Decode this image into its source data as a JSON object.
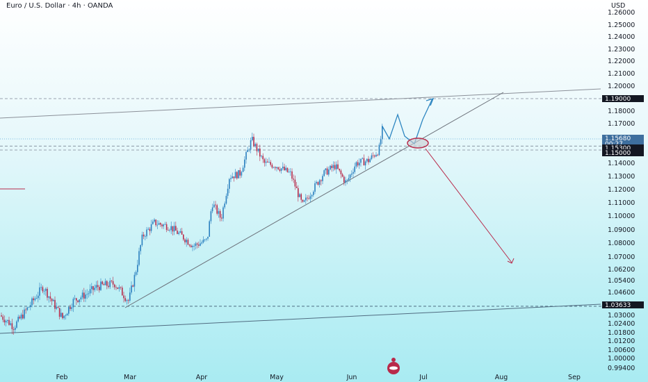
{
  "chart_data": {
    "type": "candlestick",
    "title": "Euro / U.S. Dollar · 4h · OANDA",
    "currency": "USD",
    "x_ticks": [
      "Feb",
      "Mar",
      "Apr",
      "May",
      "Jun",
      "Jul",
      "Aug",
      "Sep"
    ],
    "y_ticks": [
      "1.26000",
      "1.25000",
      "1.24000",
      "1.23000",
      "1.22000",
      "1.21000",
      "1.20000",
      "1.18000",
      "1.17000",
      "1.14000",
      "1.13000",
      "1.12000",
      "1.11000",
      "1.10000",
      "1.09000",
      "1.08000",
      "1.07000",
      "1.06200",
      "1.05400",
      "1.04600",
      "1.03000",
      "1.02400",
      "1.01800",
      "1.01200",
      "1.00600",
      "1.00000",
      "0.99400"
    ],
    "price_tags": [
      {
        "label": "1.19000",
        "value": 1.19,
        "color": "#131722"
      },
      {
        "label": "1.15680",
        "value": 1.1568,
        "color": "#3e6f9e"
      },
      {
        "label": "00:27",
        "value": 1.1555,
        "color": "#3e6f9e"
      },
      {
        "label": "1.15300",
        "value": 1.153,
        "color": "#131722"
      },
      {
        "label": "1.15000",
        "value": 1.15,
        "color": "#131722"
      },
      {
        "label": "1.03633",
        "value": 1.03633,
        "color": "#131722"
      }
    ],
    "candle_colors": {
      "up": "#2a7fbf",
      "down": "#b82a4a"
    },
    "price_path": [
      {
        "x": "early Jan",
        "close": 1.03
      },
      {
        "x": "mid Jan",
        "close": 1.04
      },
      {
        "x": "late Jan",
        "close": 1.045
      },
      {
        "x": "early Feb",
        "close": 1.025
      },
      {
        "x": "mid Feb",
        "close": 1.045
      },
      {
        "x": "late Feb",
        "close": 1.042
      },
      {
        "x": "early Mar",
        "close": 1.05
      },
      {
        "x": "mid Mar",
        "close": 1.09
      },
      {
        "x": "late Mar",
        "close": 1.08
      },
      {
        "x": "early Apr",
        "close": 1.095
      },
      {
        "x": "mid Apr",
        "close": 1.14
      },
      {
        "x": "late Apr",
        "close": 1.135
      },
      {
        "x": "early May",
        "close": 1.12
      },
      {
        "x": "mid May",
        "close": 1.115
      },
      {
        "x": "late May",
        "close": 1.13
      },
      {
        "x": "early Jun",
        "close": 1.14
      },
      {
        "x": "mid Jun",
        "close": 1.15
      },
      {
        "x": "late Jun",
        "close": 1.166
      }
    ],
    "annotations": {
      "resistance_line": "sloped upper channel line",
      "support_line": "sloped lower channel line",
      "ascending_trendline": "rising trendline",
      "bullish_projection_target": 1.19,
      "bearish_projection_target": 1.065,
      "retest_zone": [
        1.15,
        1.153
      ]
    }
  }
}
